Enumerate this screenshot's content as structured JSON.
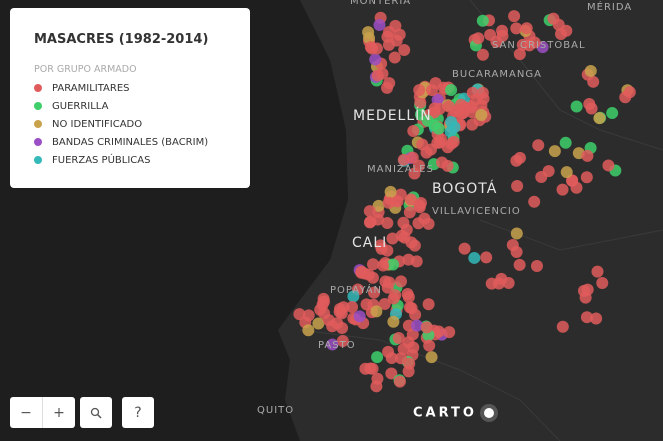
{
  "legend": {
    "title": "MASACRES (1982-2014)",
    "subtitle": "POR GRUPO ARMADO",
    "items": [
      {
        "name": "PARAMILITARES",
        "color": "#e05c5c"
      },
      {
        "name": "GUERRILLA",
        "color": "#3ecf6b"
      },
      {
        "name": "NO IDENTIFICADO",
        "color": "#c9a24c"
      },
      {
        "name": "BANDAS CRIMINALES (BACRIM)",
        "color": "#9b4fc4"
      },
      {
        "name": "FUERZAS PÚBLICAS",
        "color": "#33b9b9"
      }
    ]
  },
  "map_labels": [
    "MONTERÍA",
    "MÉRIDA",
    "SAN CRISTOBAL",
    "BUCARAMANGA",
    "MEDELLÍN",
    "MANIZALES",
    "BOGOTÁ",
    "VILLAVICENCIO",
    "CALI",
    "POPAYÁN",
    "PASTO",
    "QUITO"
  ],
  "controls": {
    "zoom_out": "−",
    "zoom_in": "+",
    "help": "?"
  },
  "logo": "CARTO"
}
